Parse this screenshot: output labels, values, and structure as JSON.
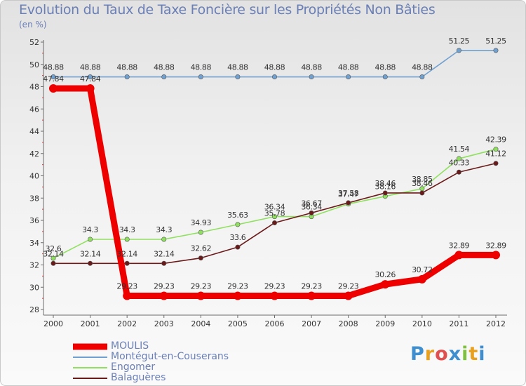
{
  "header": {
    "title": "Evolution du Taux de Taxe Foncière sur les Propriétés Non Bâties",
    "unit": "(en %)"
  },
  "chart_data": {
    "type": "line",
    "title": "Evolution du Taux de Taxe Foncière sur les Propriétés Non Bâties",
    "ylabel": "(en %)",
    "xlabel": "",
    "x": [
      "2000",
      "2001",
      "2002",
      "2003",
      "2004",
      "2005",
      "2006",
      "2007",
      "2008",
      "2009",
      "2010",
      "2011",
      "2012"
    ],
    "ylim": [
      28,
      52
    ],
    "yticks": [
      28,
      30,
      32,
      34,
      36,
      38,
      40,
      42,
      44,
      46,
      48,
      50,
      52
    ],
    "grid": false,
    "series": [
      {
        "name": "MOULIS",
        "color": "#ee0000",
        "values": [
          47.84,
          47.84,
          29.23,
          29.23,
          29.23,
          29.23,
          29.23,
          29.23,
          29.23,
          30.26,
          30.72,
          32.89,
          32.89
        ],
        "labels": [
          "47.84",
          "47.84",
          "29.23",
          "29.23",
          "29.23",
          "29.23",
          "29.23",
          "29.23",
          "29.23",
          "30.26",
          "30.72",
          "32.89",
          "32.89"
        ]
      },
      {
        "name": "Montégut-en-Couserans",
        "color": "#6fa0d0",
        "values": [
          48.88,
          48.88,
          48.88,
          48.88,
          48.88,
          48.88,
          48.88,
          48.88,
          48.88,
          48.88,
          48.88,
          51.25,
          51.25
        ],
        "labels": [
          "48.88",
          "48.88",
          "48.88",
          "48.88",
          "48.88",
          "48.88",
          "48.88",
          "48.88",
          "48.88",
          "48.88",
          "48.88",
          "51.25",
          "51.25"
        ]
      },
      {
        "name": "Engomer",
        "color": "#90e060",
        "values": [
          32.6,
          34.3,
          34.3,
          34.3,
          34.93,
          35.63,
          36.34,
          36.34,
          37.47,
          38.16,
          38.85,
          41.54,
          42.39
        ],
        "labels": [
          "32.6",
          "34.3",
          "34.3",
          "34.3",
          "34.93",
          "35.63",
          "36.34",
          "36.34",
          "37.47",
          "38.16",
          "38.85",
          "41.54",
          "42.39"
        ]
      },
      {
        "name": "Balaguères",
        "color": "#6b1a1a",
        "values": [
          32.14,
          32.14,
          32.14,
          32.14,
          32.62,
          33.6,
          35.78,
          36.67,
          37.58,
          38.46,
          38.46,
          40.33,
          41.12
        ],
        "labels": [
          "32.14",
          "32.14",
          "32.14",
          "32.14",
          "32.62",
          "33.6",
          "35.78",
          "36.67",
          "37.58",
          "38.46",
          "38.46",
          "40.33",
          "41.12"
        ]
      }
    ]
  },
  "logo": {
    "text": "Proxiti"
  }
}
